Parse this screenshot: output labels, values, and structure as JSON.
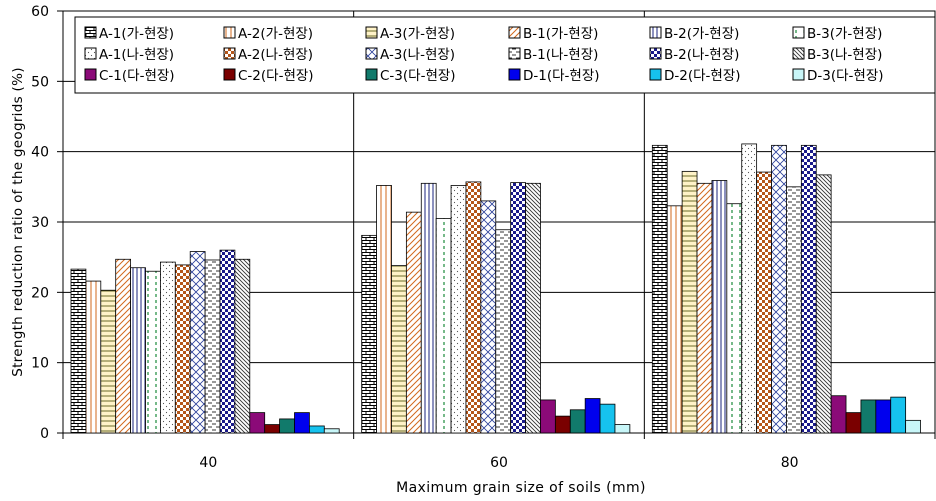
{
  "chart_data": {
    "type": "bar",
    "title": "",
    "xlabel": "Maximum grain size of soils (mm)",
    "ylabel": "Strength reduction ratio of the geogrids (%)",
    "ylim": [
      0,
      60
    ],
    "yticks": [
      "0",
      "10",
      "20",
      "30",
      "40",
      "50",
      "60"
    ],
    "grid": true,
    "legend_position": "top",
    "categories": [
      "40",
      "60",
      "80"
    ],
    "series": [
      {
        "name": "A-1(가-현장)",
        "values": [
          23.3,
          28.1,
          40.9
        ]
      },
      {
        "name": "A-2(가-현장)",
        "values": [
          21.6,
          35.2,
          32.3
        ]
      },
      {
        "name": "A-3(가-현장)",
        "values": [
          20.3,
          23.8,
          37.2
        ]
      },
      {
        "name": "B-1(가-현장)",
        "values": [
          24.7,
          31.4,
          35.5
        ]
      },
      {
        "name": "B-2(가-현장)",
        "values": [
          23.5,
          35.5,
          35.9
        ]
      },
      {
        "name": "B-3(가-현장)",
        "values": [
          23.0,
          30.5,
          32.6
        ]
      },
      {
        "name": "A-1(나-현장)",
        "values": [
          24.3,
          35.2,
          41.1
        ]
      },
      {
        "name": "A-2(나-현장)",
        "values": [
          23.9,
          35.7,
          37.1
        ]
      },
      {
        "name": "A-3(나-현장)",
        "values": [
          25.8,
          33.0,
          40.9
        ]
      },
      {
        "name": "B-1(나-현장)",
        "values": [
          24.6,
          28.9,
          35.0
        ]
      },
      {
        "name": "B-2(나-현장)",
        "values": [
          26.0,
          35.6,
          40.9
        ]
      },
      {
        "name": "B-3(나-현장)",
        "values": [
          24.7,
          35.5,
          36.7
        ]
      },
      {
        "name": "C-1(다-현장)",
        "values": [
          2.9,
          4.7,
          5.3
        ]
      },
      {
        "name": "C-2(다-현장)",
        "values": [
          1.2,
          2.4,
          2.9
        ]
      },
      {
        "name": "C-3(다-현장)",
        "values": [
          2.0,
          3.3,
          4.7
        ]
      },
      {
        "name": "D-1(다-현장)",
        "values": [
          2.9,
          4.9,
          4.7
        ]
      },
      {
        "name": "D-2(다-현장)",
        "values": [
          1.0,
          4.1,
          5.1
        ]
      },
      {
        "name": "D-3(다-현장)",
        "values": [
          0.6,
          1.2,
          1.8
        ]
      }
    ],
    "series_styles": [
      {
        "fill": "#ffffff",
        "pattern": "brick"
      },
      {
        "fill": "#ffffff",
        "pattern": "vlines"
      },
      {
        "fill": "#fff3c8",
        "pattern": "hlines"
      },
      {
        "fill": "#ffffff",
        "pattern": "diag"
      },
      {
        "fill": "#ffffff",
        "pattern": "vlines-dense"
      },
      {
        "fill": "#ffffff",
        "pattern": "dashed-green"
      },
      {
        "fill": "#ffffff",
        "pattern": "dots"
      },
      {
        "fill": "#b5651d",
        "pattern": "orange-check"
      },
      {
        "fill": "#ffffff",
        "pattern": "xhatch"
      },
      {
        "fill": "#ffffff",
        "pattern": "dash-grid"
      },
      {
        "fill": "#ffffff",
        "pattern": "navy-check"
      },
      {
        "fill": "#ffffff",
        "pattern": "diag-dense"
      },
      {
        "fill": "#8b0a78",
        "pattern": "none"
      },
      {
        "fill": "#7a0000",
        "pattern": "none"
      },
      {
        "fill": "#117a6b",
        "pattern": "none"
      },
      {
        "fill": "#0000ee",
        "pattern": "none"
      },
      {
        "fill": "#16c2ee",
        "pattern": "none"
      },
      {
        "fill": "#c8f6f8",
        "pattern": "none"
      }
    ],
    "legend_order": [
      0,
      1,
      2,
      3,
      4,
      5,
      6,
      7,
      8,
      9,
      10,
      11,
      12,
      13,
      14,
      15,
      16,
      17
    ]
  }
}
